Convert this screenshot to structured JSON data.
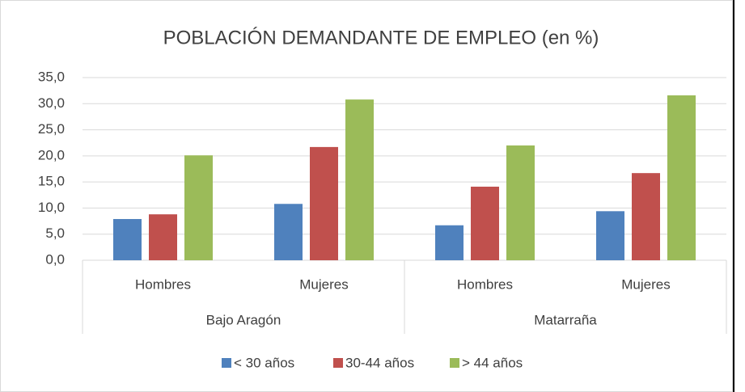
{
  "chart_data": {
    "type": "bar",
    "title": "POBLACIÓN DEMANDANTE DE EMPLEO (en %)",
    "categories": [
      "Hombres",
      "Mujeres",
      "Hombres",
      "Mujeres"
    ],
    "group_labels": [
      "Bajo Aragón",
      "Matarraña"
    ],
    "series": [
      {
        "name": "< 30 años",
        "color": "#4f81bd",
        "values": [
          7.9,
          10.8,
          6.7,
          9.4
        ]
      },
      {
        "name": "30-44 años",
        "color": "#c0504d",
        "values": [
          8.8,
          21.7,
          14.1,
          16.7
        ]
      },
      {
        "name": "> 44 años",
        "color": "#9bbb59",
        "values": [
          20.1,
          30.8,
          22.0,
          31.6
        ]
      }
    ],
    "ylim": [
      0,
      35
    ],
    "yticks": [
      {
        "value": 0,
        "label": "0,0"
      },
      {
        "value": 5,
        "label": "5,0"
      },
      {
        "value": 10,
        "label": "10,0"
      },
      {
        "value": 15,
        "label": "15,0"
      },
      {
        "value": 20,
        "label": "20,0"
      },
      {
        "value": 25,
        "label": "25,0"
      },
      {
        "value": 30,
        "label": "30,0"
      },
      {
        "value": 35,
        "label": "35,0"
      }
    ],
    "grid": true,
    "legend": "bottom"
  }
}
